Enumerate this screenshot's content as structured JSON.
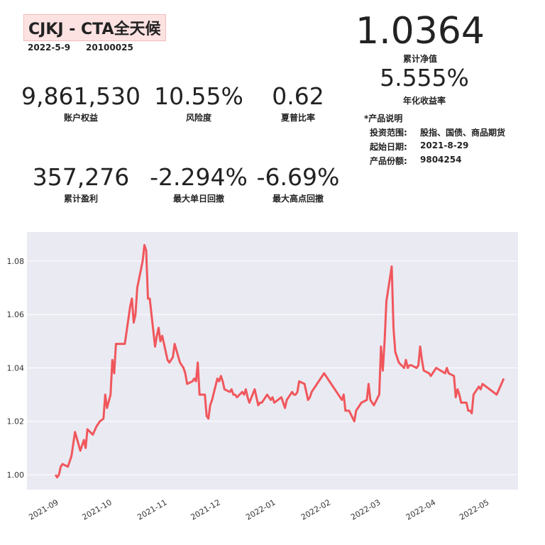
{
  "header": {
    "title": "CJKJ - CTA全天候",
    "date": "2022-5-9",
    "account": "20100025"
  },
  "nav": {
    "value": "1.0364",
    "label": "累计净值"
  },
  "annual": {
    "value": "5.555%",
    "label": "年化收益率"
  },
  "stats": [
    {
      "value": "9,861,530",
      "label": "账户权益"
    },
    {
      "value": "10.55%",
      "label": "风险度"
    },
    {
      "value": "0.62",
      "label": "夏普比率"
    },
    {
      "value": "357,276",
      "label": "累计盈利"
    },
    {
      "value": "-2.294%",
      "label": "最大单日回撤"
    },
    {
      "value": "-6.69%",
      "label": "最大高点回撤"
    }
  ],
  "product": {
    "heading": "*产品说明",
    "rows": [
      [
        "投资范围:",
        "股指、国债、商品期货"
      ],
      [
        "起始日期:",
        "2021-8-29"
      ],
      [
        "产品份额:",
        "9804254"
      ]
    ]
  },
  "chart_data": {
    "type": "line",
    "color": "#f0575c",
    "grid": true,
    "x": [
      "2021-08-30",
      "2021-08-31",
      "2021-09-01",
      "2021-09-02",
      "2021-09-03",
      "2021-09-06",
      "2021-09-08",
      "2021-09-10",
      "2021-09-13",
      "2021-09-14",
      "2021-09-15",
      "2021-09-16",
      "2021-09-17",
      "2021-09-20",
      "2021-09-22",
      "2021-09-24",
      "2021-09-26",
      "2021-09-27",
      "2021-09-28",
      "2021-09-30",
      "2021-10-01",
      "2021-10-02",
      "2021-10-03",
      "2021-10-08",
      "2021-10-11",
      "2021-10-12",
      "2021-10-13",
      "2021-10-14",
      "2021-10-15",
      "2021-10-18",
      "2021-10-19",
      "2021-10-20",
      "2021-10-21",
      "2021-10-22",
      "2021-10-25",
      "2021-10-26",
      "2021-10-27",
      "2021-10-28",
      "2021-10-29",
      "2021-11-01",
      "2021-11-02",
      "2021-11-04",
      "2021-11-05",
      "2021-11-08",
      "2021-11-09",
      "2021-11-10",
      "2021-11-11",
      "2021-11-12",
      "2021-11-15",
      "2021-11-16",
      "2021-11-17",
      "2021-11-18",
      "2021-11-19",
      "2021-11-22",
      "2021-11-23",
      "2021-11-24",
      "2021-11-25",
      "2021-11-26",
      "2021-11-29",
      "2021-11-30",
      "2021-12-01",
      "2021-12-02",
      "2021-12-03",
      "2021-12-06",
      "2021-12-07",
      "2021-12-08",
      "2021-12-09",
      "2021-12-10",
      "2021-12-13",
      "2021-12-14",
      "2021-12-15",
      "2021-12-16",
      "2021-12-17",
      "2021-12-20",
      "2021-12-21",
      "2021-12-22",
      "2021-12-23",
      "2021-12-24",
      "2021-12-27",
      "2021-12-28",
      "2021-12-29",
      "2021-12-30",
      "2021-12-31",
      "2022-01-04",
      "2022-01-05",
      "2022-01-06",
      "2022-01-07",
      "2022-01-10",
      "2022-01-11",
      "2022-01-12",
      "2022-01-13",
      "2022-01-14",
      "2022-01-17",
      "2022-01-18",
      "2022-01-19",
      "2022-01-20",
      "2022-01-21",
      "2022-01-28",
      "2022-02-07",
      "2022-02-08",
      "2022-02-09",
      "2022-02-11",
      "2022-02-14",
      "2022-02-15",
      "2022-02-16",
      "2022-02-17",
      "2022-02-18",
      "2022-02-21",
      "2022-02-22",
      "2022-02-23",
      "2022-02-24",
      "2022-02-25",
      "2022-02-28",
      "2022-03-01",
      "2022-03-02",
      "2022-03-03",
      "2022-03-04",
      "2022-03-07",
      "2022-03-08",
      "2022-03-09",
      "2022-03-10",
      "2022-03-11",
      "2022-03-14",
      "2022-03-15",
      "2022-03-16",
      "2022-03-17",
      "2022-03-18",
      "2022-03-21",
      "2022-03-22",
      "2022-03-23",
      "2022-03-24",
      "2022-03-25",
      "2022-03-28",
      "2022-03-29",
      "2022-03-30",
      "2022-03-31",
      "2022-04-01",
      "2022-04-06",
      "2022-04-07",
      "2022-04-08",
      "2022-04-11",
      "2022-04-12",
      "2022-04-13",
      "2022-04-14",
      "2022-04-15",
      "2022-04-18",
      "2022-04-19",
      "2022-04-20",
      "2022-04-21",
      "2022-04-22",
      "2022-04-25",
      "2022-04-26",
      "2022-04-27",
      "2022-05-05",
      "2022-05-09"
    ],
    "values": [
      1.0,
      0.999,
      1.0,
      1.003,
      1.004,
      1.003,
      1.007,
      1.016,
      1.009,
      1.011,
      1.013,
      1.01,
      1.017,
      1.015,
      1.018,
      1.02,
      1.021,
      1.03,
      1.025,
      1.03,
      1.043,
      1.038,
      1.049,
      1.049,
      1.063,
      1.066,
      1.057,
      1.06,
      1.07,
      1.08,
      1.086,
      1.084,
      1.066,
      1.066,
      1.048,
      1.052,
      1.055,
      1.05,
      1.052,
      1.043,
      1.042,
      1.044,
      1.049,
      1.042,
      1.041,
      1.04,
      1.038,
      1.034,
      1.035,
      1.036,
      1.035,
      1.042,
      1.03,
      1.03,
      1.022,
      1.021,
      1.026,
      1.028,
      1.036,
      1.035,
      1.037,
      1.035,
      1.032,
      1.031,
      1.032,
      1.03,
      1.03,
      1.029,
      1.031,
      1.03,
      1.032,
      1.029,
      1.027,
      1.032,
      1.029,
      1.026,
      1.027,
      1.027,
      1.03,
      1.029,
      1.028,
      1.029,
      1.027,
      1.029,
      1.027,
      1.025,
      1.028,
      1.031,
      1.03,
      1.03,
      1.031,
      1.035,
      1.034,
      1.031,
      1.028,
      1.029,
      1.031,
      1.038,
      1.028,
      1.03,
      1.024,
      1.024,
      1.02,
      1.024,
      1.025,
      1.026,
      1.027,
      1.028,
      1.034,
      1.028,
      1.027,
      1.026,
      1.03,
      1.048,
      1.039,
      1.05,
      1.065,
      1.078,
      1.055,
      1.046,
      1.044,
      1.042,
      1.04,
      1.043,
      1.04,
      1.041,
      1.041,
      1.04,
      1.041,
      1.048,
      1.043,
      1.039,
      1.038,
      1.037,
      1.038,
      1.039,
      1.04,
      1.038,
      1.04,
      1.038,
      1.037,
      1.029,
      1.032,
      1.03,
      1.027,
      1.027,
      1.024,
      1.024,
      1.023,
      1.03,
      1.033,
      1.032,
      1.034,
      1.03,
      1.036
    ],
    "xlim": [
      "2021-08-14",
      "2022-05-17"
    ],
    "xticks": [
      {
        "value": "2021-09-01",
        "label": "2021-09"
      },
      {
        "value": "2021-10-01",
        "label": "2021-10"
      },
      {
        "value": "2021-11-01",
        "label": "2021-11"
      },
      {
        "value": "2021-12-01",
        "label": "2021-12"
      },
      {
        "value": "2022-01-01",
        "label": "2022-01"
      },
      {
        "value": "2022-02-01",
        "label": "2022-02"
      },
      {
        "value": "2022-03-01",
        "label": "2022-03"
      },
      {
        "value": "2022-04-01",
        "label": "2022-04"
      },
      {
        "value": "2022-05-01",
        "label": "2022-05"
      }
    ],
    "ylim": [
      0.9944,
      1.0909
    ],
    "yticks": [
      {
        "value": 1.0,
        "label": "1.00"
      },
      1.02,
      1.04,
      1.06,
      1.08
    ]
  }
}
